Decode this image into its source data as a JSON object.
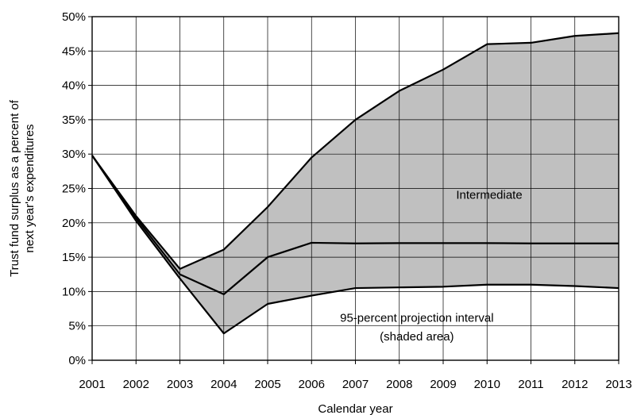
{
  "chart_data": {
    "type": "area",
    "title": "",
    "xlabel": "Calendar year",
    "ylabel_lines": [
      "Trust fund surplus as a percent of",
      "next year's expenditures"
    ],
    "x": [
      2001,
      2002,
      2003,
      2004,
      2005,
      2006,
      2007,
      2008,
      2009,
      2010,
      2011,
      2012,
      2013
    ],
    "xlim": [
      2001,
      2013
    ],
    "ylim": [
      0,
      50
    ],
    "y_ticks": [
      0,
      5,
      10,
      15,
      20,
      25,
      30,
      35,
      40,
      45,
      50
    ],
    "y_tick_labels": [
      "0%",
      "5%",
      "10%",
      "15%",
      "20%",
      "25%",
      "30%",
      "35%",
      "40%",
      "45%",
      "50%"
    ],
    "x_tick_labels": [
      "2001",
      "2002",
      "2003",
      "2004",
      "2005",
      "2006",
      "2007",
      "2008",
      "2009",
      "2010",
      "2011",
      "2012",
      "2013"
    ],
    "grid": true,
    "shaded_band": {
      "upper": [
        29.8,
        21.0,
        13.3,
        16.1,
        22.3,
        29.5,
        35.0,
        39.2,
        42.3,
        46.0,
        46.2,
        47.2,
        47.6
      ],
      "lower": [
        29.8,
        20.3,
        11.9,
        3.9,
        8.2,
        9.4,
        10.5,
        10.6,
        10.7,
        11.0,
        11.0,
        10.8,
        10.5
      ],
      "color": "#c0c0c0"
    },
    "series": [
      {
        "values": [
          29.8,
          20.7,
          12.5,
          9.6,
          15.0,
          17.1,
          17.0,
          17.05,
          17.05,
          17.05,
          17.0,
          17.0,
          17.0
        ]
      }
    ],
    "annotations": [
      {
        "text": "Intermediate",
        "x": 2010.05,
        "y": 23.5
      },
      {
        "text": "95-percent projection interval",
        "x": 2008.4,
        "y": 5.6
      },
      {
        "text": "(shaded area)",
        "x": 2008.4,
        "y": 2.9
      }
    ]
  }
}
